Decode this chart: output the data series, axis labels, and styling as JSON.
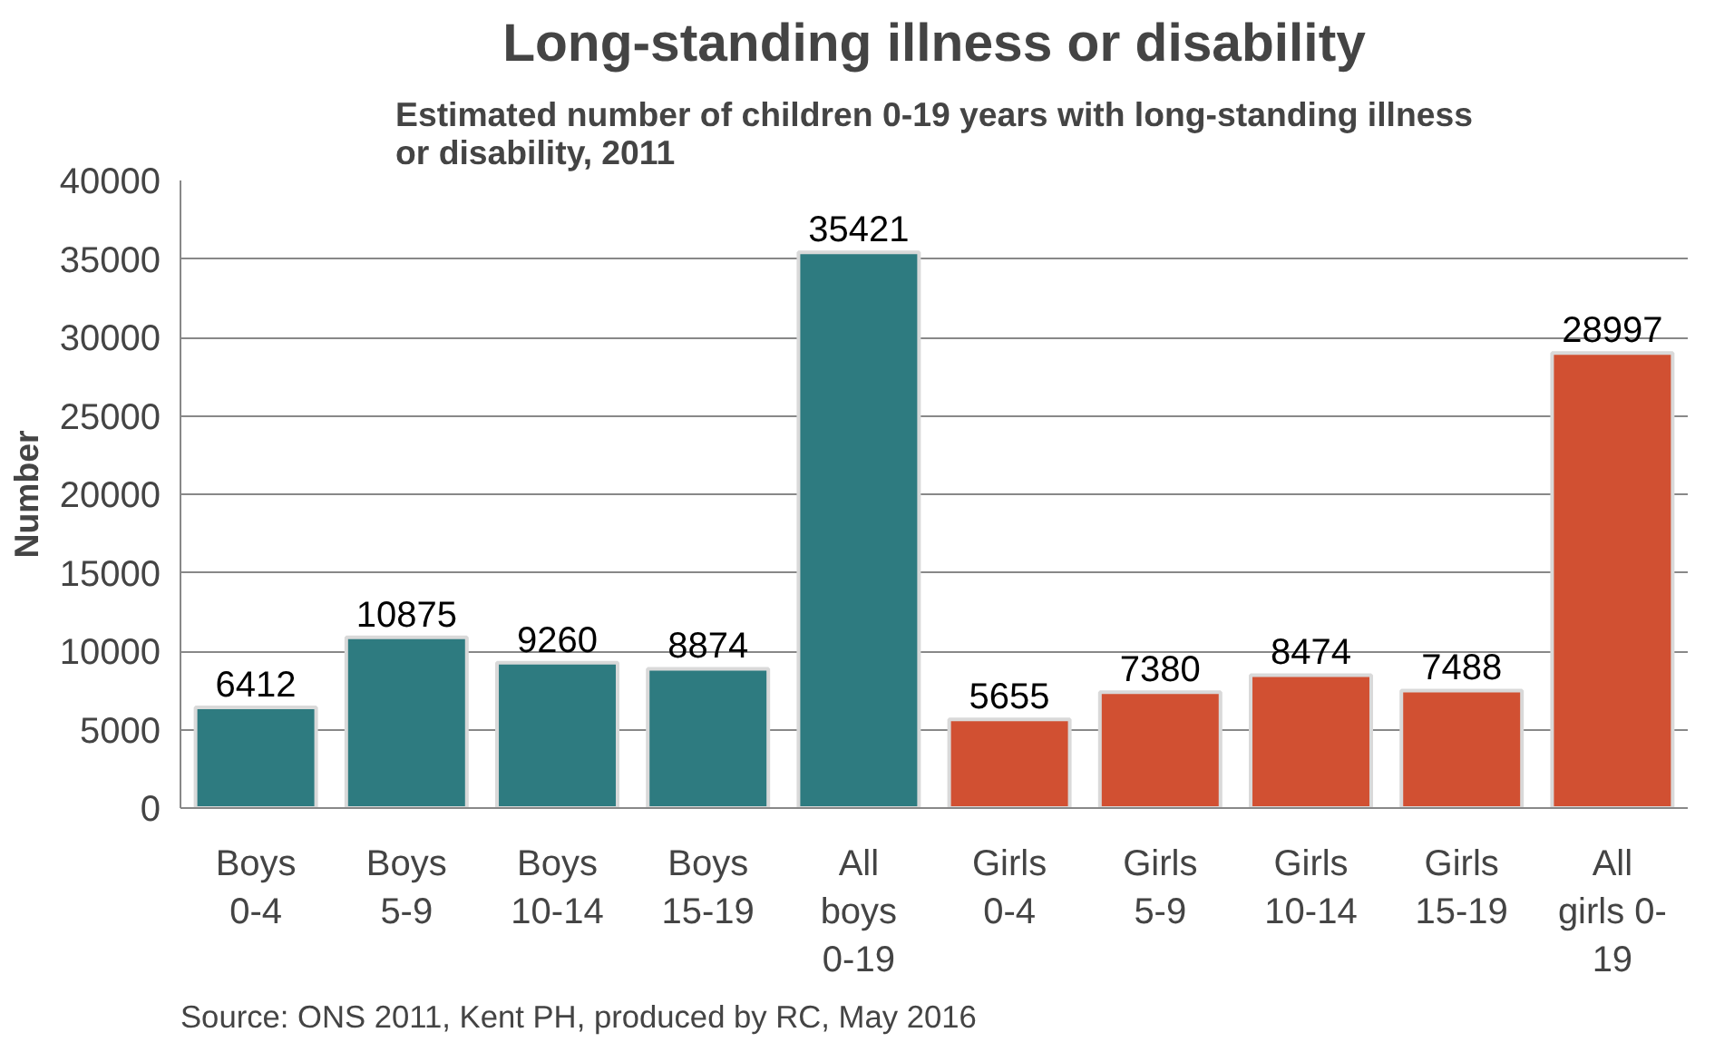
{
  "chart_data": {
    "type": "bar",
    "title": "Long-standing illness or disability",
    "subtitle": "Estimated number of children 0-19 years with long-standing illness\nor disability, 2011",
    "ylabel": "Number",
    "categories": [
      "Boys\n0-4",
      "Boys\n5-9",
      "Boys\n10-14",
      "Boys\n15-19",
      "All\nboys\n0-19",
      "Girls\n0-4",
      "Girls\n5-9",
      "Girls\n10-14",
      "Girls\n15-19",
      "All\ngirls 0-\n19"
    ],
    "values": [
      6412,
      10875,
      9260,
      8874,
      35421,
      5655,
      7380,
      8474,
      7488,
      28997
    ],
    "colors": [
      "#2e7b80",
      "#2e7b80",
      "#2e7b80",
      "#2e7b80",
      "#2e7b80",
      "#d15032",
      "#d15032",
      "#d15032",
      "#d15032",
      "#d15032"
    ],
    "ylim": [
      0,
      40000
    ],
    "yticks": [
      0,
      5000,
      10000,
      15000,
      20000,
      25000,
      30000,
      35000,
      40000
    ],
    "grid": "y",
    "data_labels": true,
    "annotations": [
      "Source: ONS 2011, Kent PH, produced by RC, May 2016"
    ]
  }
}
